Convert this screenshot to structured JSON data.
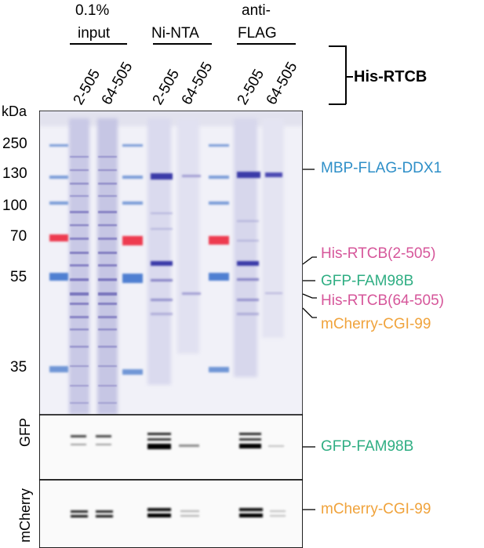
{
  "header": {
    "groups": [
      {
        "line1": "0.1%",
        "line2": "input"
      },
      {
        "line1": "",
        "line2": "Ni-NTA"
      },
      {
        "line1": "anti-",
        "line2": "FLAG"
      }
    ],
    "lane_labels": [
      "2-505",
      "64-505",
      "2-505",
      "64-505",
      "2-505",
      "64-505"
    ],
    "construct_label": "His-RTCB"
  },
  "marker": {
    "unit": "kDa",
    "values": [
      "250",
      "130",
      "100",
      "70",
      "55",
      "35"
    ]
  },
  "blots": {
    "gfp_label": "GFP",
    "mcherry_label": "mCherry"
  },
  "protein_labels": [
    {
      "text": "MBP-FLAG-DDX1",
      "color": "#2e8fc8"
    },
    {
      "text": "His-RTCB(2-505)",
      "color": "#d6569a"
    },
    {
      "text": "GFP-FAM98B",
      "color": "#2fae83"
    },
    {
      "text": "His-RTCB(64-505)",
      "color": "#d6569a"
    },
    {
      "text": "mCherry-CGI-99",
      "color": "#f0a33c"
    },
    {
      "text": "GFP-FAM98B",
      "color": "#2fae83"
    },
    {
      "text": "mCherry-CGI-99",
      "color": "#f0a33c"
    }
  ]
}
